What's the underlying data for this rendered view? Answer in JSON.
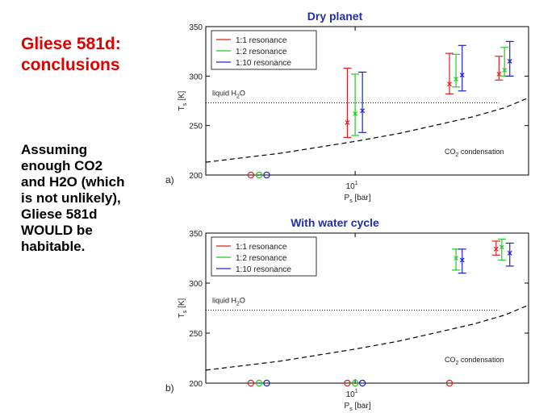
{
  "slide": {
    "title": "Gliese 581d: conclusions",
    "body_lines": [
      "Assuming",
      "enough CO2",
      "and H2O (which",
      "is not unlikely),",
      "Gliese 581d",
      "WOULD be",
      "habitable."
    ]
  },
  "colors": {
    "red": "#e02020",
    "green": "#22cc22",
    "blue": "#2020d0"
  },
  "chart_data": [
    {
      "type": "scatter",
      "panel_label": "a)",
      "title": "Dry planet",
      "xlabel": "P",
      "xlabel_sub": "s",
      "xlabel_unit": " [bar]",
      "ylabel": "T",
      "ylabel_sub": "s",
      "ylabel_unit": " [K]",
      "xscale": "log",
      "xlim": [
        2.5,
        50
      ],
      "ylim": [
        200,
        350
      ],
      "yticks": [
        200,
        250,
        300,
        350
      ],
      "xtick_label": {
        "base": "10",
        "exp": "1",
        "value": 10
      },
      "legend": {
        "placement": "top-left",
        "entries": [
          "1:1 resonance",
          "1:2 resonance",
          "1:10 resonance"
        ]
      },
      "annotations": {
        "liquid": "liquid H",
        "liquid_sub": "2",
        "liquid_end": "O",
        "condensation": "CO",
        "condensation_sub": "2",
        "condensation_end": " condensation"
      },
      "liquid_line_y": 273,
      "condensation_curve": {
        "x": [
          2.5,
          5,
          10,
          15,
          20,
          30,
          40,
          50
        ],
        "y": [
          213,
          222,
          234,
          242,
          249,
          259,
          268,
          278
        ]
      },
      "series": [
        {
          "color_key": "red",
          "circles_x": [
            3.8
          ],
          "points": [
            {
              "x": 9.3,
              "y": 253,
              "low": 238,
              "high": 308
            },
            {
              "x": 24,
              "y": 292,
              "low": 282,
              "high": 323
            },
            {
              "x": 38,
              "y": 302,
              "low": 296,
              "high": 320
            }
          ]
        },
        {
          "color_key": "green",
          "circles_x": [
            4.1
          ],
          "points": [
            {
              "x": 10,
              "y": 262,
              "low": 240,
              "high": 302
            },
            {
              "x": 25.5,
              "y": 297,
              "low": 289,
              "high": 322
            },
            {
              "x": 40,
              "y": 306,
              "low": 300,
              "high": 329
            }
          ]
        },
        {
          "color_key": "blue",
          "circles_x": [
            4.4
          ],
          "points": [
            {
              "x": 10.7,
              "y": 265,
              "low": 243,
              "high": 304
            },
            {
              "x": 27,
              "y": 301,
              "low": 285,
              "high": 331
            },
            {
              "x": 42,
              "y": 315,
              "low": 300,
              "high": 335
            }
          ]
        }
      ]
    },
    {
      "type": "scatter",
      "panel_label": "b)",
      "title": "With water cycle",
      "xlabel": "P",
      "xlabel_sub": "s",
      "xlabel_unit": " [bar]",
      "ylabel": "T",
      "ylabel_sub": "s",
      "ylabel_unit": " [K]",
      "xscale": "log",
      "xlim": [
        2.5,
        50
      ],
      "ylim": [
        200,
        350
      ],
      "yticks": [
        200,
        250,
        300,
        350
      ],
      "xtick_label": {
        "base": "10",
        "exp": "1",
        "value": 10
      },
      "legend": {
        "placement": "top-left",
        "entries": [
          "1:1 resonance",
          "1:2 resonance",
          "1:10 resonance"
        ]
      },
      "annotations": {
        "liquid": "liquid H",
        "liquid_sub": "2",
        "liquid_end": "O",
        "condensation": "CO",
        "condensation_sub": "2",
        "condensation_end": " condensation"
      },
      "liquid_line_y": 273,
      "condensation_curve": {
        "x": [
          2.5,
          5,
          10,
          15,
          20,
          30,
          40,
          50
        ],
        "y": [
          213,
          222,
          234,
          242,
          249,
          259,
          268,
          278
        ]
      },
      "series": [
        {
          "color_key": "red",
          "circles_x": [
            3.8,
            9.3,
            24
          ],
          "points": [
            {
              "x": 37,
              "y": 334,
              "low": 328,
              "high": 342
            }
          ]
        },
        {
          "color_key": "green",
          "circles_x": [
            4.1,
            10
          ],
          "points": [
            {
              "x": 25.5,
              "y": 325,
              "low": 313,
              "high": 334
            },
            {
              "x": 39,
              "y": 336,
              "low": 323,
              "high": 344
            }
          ]
        },
        {
          "color_key": "blue",
          "circles_x": [
            4.4,
            10.7
          ],
          "points": [
            {
              "x": 27,
              "y": 323,
              "low": 310,
              "high": 334
            },
            {
              "x": 42,
              "y": 330,
              "low": 317,
              "high": 340
            }
          ]
        }
      ]
    }
  ]
}
